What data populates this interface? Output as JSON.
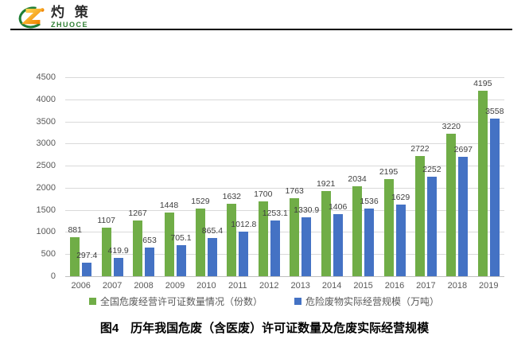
{
  "logo": {
    "brand_cn": "灼 策",
    "brand_en": "ZHUOCE"
  },
  "chart_data": {
    "type": "bar",
    "title": "",
    "categories": [
      "2006",
      "2007",
      "2008",
      "2009",
      "2010",
      "2011",
      "2012",
      "2013",
      "2014",
      "2015",
      "2016",
      "2017",
      "2018",
      "2019"
    ],
    "series": [
      {
        "name": "全国危废经营许可证数量情况（份数）",
        "color": "#70AD47",
        "values": [
          881,
          1107,
          1267,
          1448,
          1529,
          1632,
          1700,
          1763,
          1921,
          2034,
          2195,
          2722,
          3220,
          4195
        ]
      },
      {
        "name": "危险废物实际经营规模（万吨）",
        "color": "#4472C4",
        "values": [
          297.4,
          419.9,
          653,
          705.1,
          865.4,
          1012.8,
          1253.1,
          1330.9,
          1406,
          1536,
          1629,
          2252,
          2697,
          3558
        ]
      }
    ],
    "ylim": [
      0,
      4500
    ],
    "ytick_step": 500,
    "grid": true,
    "data_labels": true,
    "legend_position": "bottom",
    "xlabel": "",
    "ylabel": ""
  },
  "caption": "图4　历年我国危废（含医废）许可证数量及危废实际经营规模",
  "colors": {
    "series_green": "#70AD47",
    "series_blue": "#4472C4",
    "gridline": "#D9D9D9",
    "axis_line": "#BFBFBF",
    "tick_text": "#595959",
    "label_text": "#404040",
    "brand_green": "#2E7D32",
    "logo_orange": "#F08300",
    "logo_yellow": "#FFD34D"
  }
}
